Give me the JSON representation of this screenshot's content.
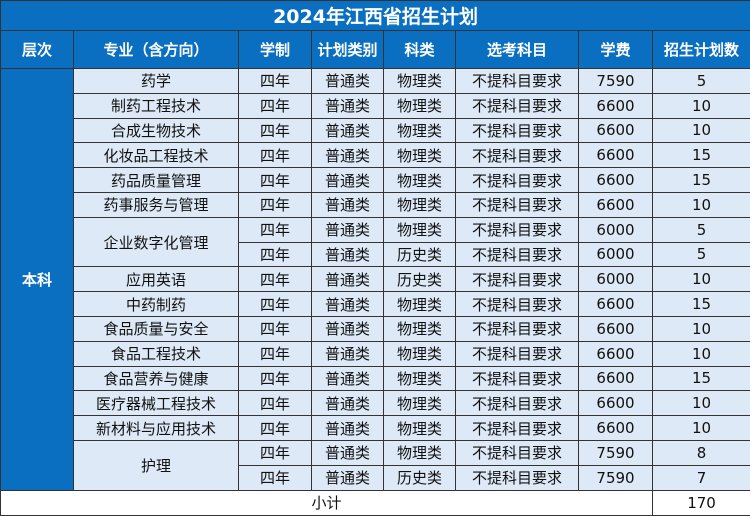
{
  "title": "2024年江西省招生计划",
  "headers": [
    "层次",
    "专业（含方向）",
    "学制",
    "计划类别",
    "科类",
    "选考科目",
    "学费",
    "招生计划数"
  ],
  "level": "本科",
  "rows": [
    {
      "major": "药学",
      "span": 1,
      "years": "四年",
      "type": "普通类",
      "track": "物理类",
      "subjects": "不提科目要求",
      "fee": "7590",
      "quota": "5"
    },
    {
      "major": "制药工程技术",
      "span": 1,
      "years": "四年",
      "type": "普通类",
      "track": "物理类",
      "subjects": "不提科目要求",
      "fee": "6600",
      "quota": "10"
    },
    {
      "major": "合成生物技术",
      "span": 1,
      "years": "四年",
      "type": "普通类",
      "track": "物理类",
      "subjects": "不提科目要求",
      "fee": "6600",
      "quota": "10"
    },
    {
      "major": "化妆品工程技术",
      "span": 1,
      "years": "四年",
      "type": "普通类",
      "track": "物理类",
      "subjects": "不提科目要求",
      "fee": "6600",
      "quota": "15"
    },
    {
      "major": "药品质量管理",
      "span": 1,
      "years": "四年",
      "type": "普通类",
      "track": "物理类",
      "subjects": "不提科目要求",
      "fee": "6600",
      "quota": "15"
    },
    {
      "major": "药事服务与管理",
      "span": 1,
      "years": "四年",
      "type": "普通类",
      "track": "物理类",
      "subjects": "不提科目要求",
      "fee": "6600",
      "quota": "10"
    },
    {
      "major": "企业数字化管理",
      "span": 2,
      "years": "四年",
      "type": "普通类",
      "track": "物理类",
      "subjects": "不提科目要求",
      "fee": "6000",
      "quota": "5"
    },
    {
      "major": null,
      "years": "四年",
      "type": "普通类",
      "track": "历史类",
      "subjects": "不提科目要求",
      "fee": "6000",
      "quota": "5"
    },
    {
      "major": "应用英语",
      "span": 1,
      "years": "四年",
      "type": "普通类",
      "track": "历史类",
      "subjects": "不提科目要求",
      "fee": "6000",
      "quota": "10"
    },
    {
      "major": "中药制药",
      "span": 1,
      "years": "四年",
      "type": "普通类",
      "track": "物理类",
      "subjects": "不提科目要求",
      "fee": "6600",
      "quota": "15"
    },
    {
      "major": "食品质量与安全",
      "span": 1,
      "years": "四年",
      "type": "普通类",
      "track": "物理类",
      "subjects": "不提科目要求",
      "fee": "6600",
      "quota": "10"
    },
    {
      "major": "食品工程技术",
      "span": 1,
      "years": "四年",
      "type": "普通类",
      "track": "物理类",
      "subjects": "不提科目要求",
      "fee": "6600",
      "quota": "10"
    },
    {
      "major": "食品营养与健康",
      "span": 1,
      "years": "四年",
      "type": "普通类",
      "track": "物理类",
      "subjects": "不提科目要求",
      "fee": "6600",
      "quota": "15"
    },
    {
      "major": "医疗器械工程技术",
      "span": 1,
      "years": "四年",
      "type": "普通类",
      "track": "物理类",
      "subjects": "不提科目要求",
      "fee": "6600",
      "quota": "10"
    },
    {
      "major": "新材料与应用技术",
      "span": 1,
      "years": "四年",
      "type": "普通类",
      "track": "物理类",
      "subjects": "不提科目要求",
      "fee": "6600",
      "quota": "10"
    },
    {
      "major": "护理",
      "span": 2,
      "years": "四年",
      "type": "普通类",
      "track": "物理类",
      "subjects": "不提科目要求",
      "fee": "7590",
      "quota": "8"
    },
    {
      "major": null,
      "years": "四年",
      "type": "普通类",
      "track": "历史类",
      "subjects": "不提科目要求",
      "fee": "7590",
      "quota": "7"
    }
  ],
  "subtotal": {
    "label": "小计",
    "value": "170"
  }
}
